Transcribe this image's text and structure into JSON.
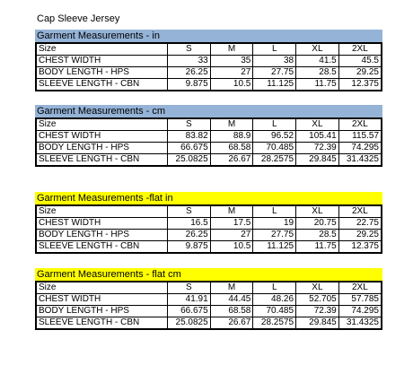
{
  "page_title": "Cap Sleeve Jersey",
  "colors": {
    "header_blue": "#95b3d7",
    "header_yellow": "#ffff00"
  },
  "tables": [
    {
      "header": "Garment Measurements - in",
      "header_color": "#95b3d7",
      "size_label": "Size",
      "sizes": [
        "S",
        "M",
        "L",
        "XL",
        "2XL"
      ],
      "rows": [
        {
          "label": "CHEST WIDTH",
          "values": [
            "33",
            "35",
            "38",
            "41.5",
            "45.5"
          ]
        },
        {
          "label": "BODY LENGTH - HPS",
          "values": [
            "26.25",
            "27",
            "27.75",
            "28.5",
            "29.25"
          ]
        },
        {
          "label": "SLEEVE LENGTH - CBN",
          "values": [
            "9.875",
            "10.5",
            "11.125",
            "11.75",
            "12.375"
          ]
        }
      ]
    },
    {
      "header": "Garment Measurements - cm",
      "header_color": "#95b3d7",
      "size_label": "Size",
      "sizes": [
        "S",
        "M",
        "L",
        "XL",
        "2XL"
      ],
      "rows": [
        {
          "label": "CHEST WIDTH",
          "values": [
            "83.82",
            "88.9",
            "96.52",
            "105.41",
            "115.57"
          ]
        },
        {
          "label": "BODY LENGTH - HPS",
          "values": [
            "66.675",
            "68.58",
            "70.485",
            "72.39",
            "74.295"
          ]
        },
        {
          "label": "SLEEVE LENGTH - CBN",
          "values": [
            "25.0825",
            "26.67",
            "28.2575",
            "29.845",
            "31.4325"
          ]
        }
      ]
    },
    {
      "header": "Garment Measurements -flat in",
      "header_color": "#ffff00",
      "size_label": "Size",
      "sizes": [
        "S",
        "M",
        "L",
        "XL",
        "2XL"
      ],
      "rows": [
        {
          "label": "CHEST WIDTH",
          "values": [
            "16.5",
            "17.5",
            "19",
            "20.75",
            "22.75"
          ]
        },
        {
          "label": "BODY LENGTH - HPS",
          "values": [
            "26.25",
            "27",
            "27.75",
            "28.5",
            "29.25"
          ]
        },
        {
          "label": "SLEEVE LENGTH - CBN",
          "values": [
            "9.875",
            "10.5",
            "11.125",
            "11.75",
            "12.375"
          ]
        }
      ]
    },
    {
      "header": "Garment Measurements - flat cm",
      "header_color": "#ffff00",
      "size_label": "Size",
      "sizes": [
        "S",
        "M",
        "L",
        "XL",
        "2XL"
      ],
      "rows": [
        {
          "label": "CHEST WIDTH",
          "values": [
            "41.91",
            "44.45",
            "48.26",
            "52.705",
            "57.785"
          ]
        },
        {
          "label": "BODY LENGTH - HPS",
          "values": [
            "66.675",
            "68.58",
            "70.485",
            "72.39",
            "74.295"
          ]
        },
        {
          "label": "SLEEVE LENGTH - CBN",
          "values": [
            "25.0825",
            "26.67",
            "28.2575",
            "29.845",
            "31.4325"
          ]
        }
      ]
    }
  ]
}
